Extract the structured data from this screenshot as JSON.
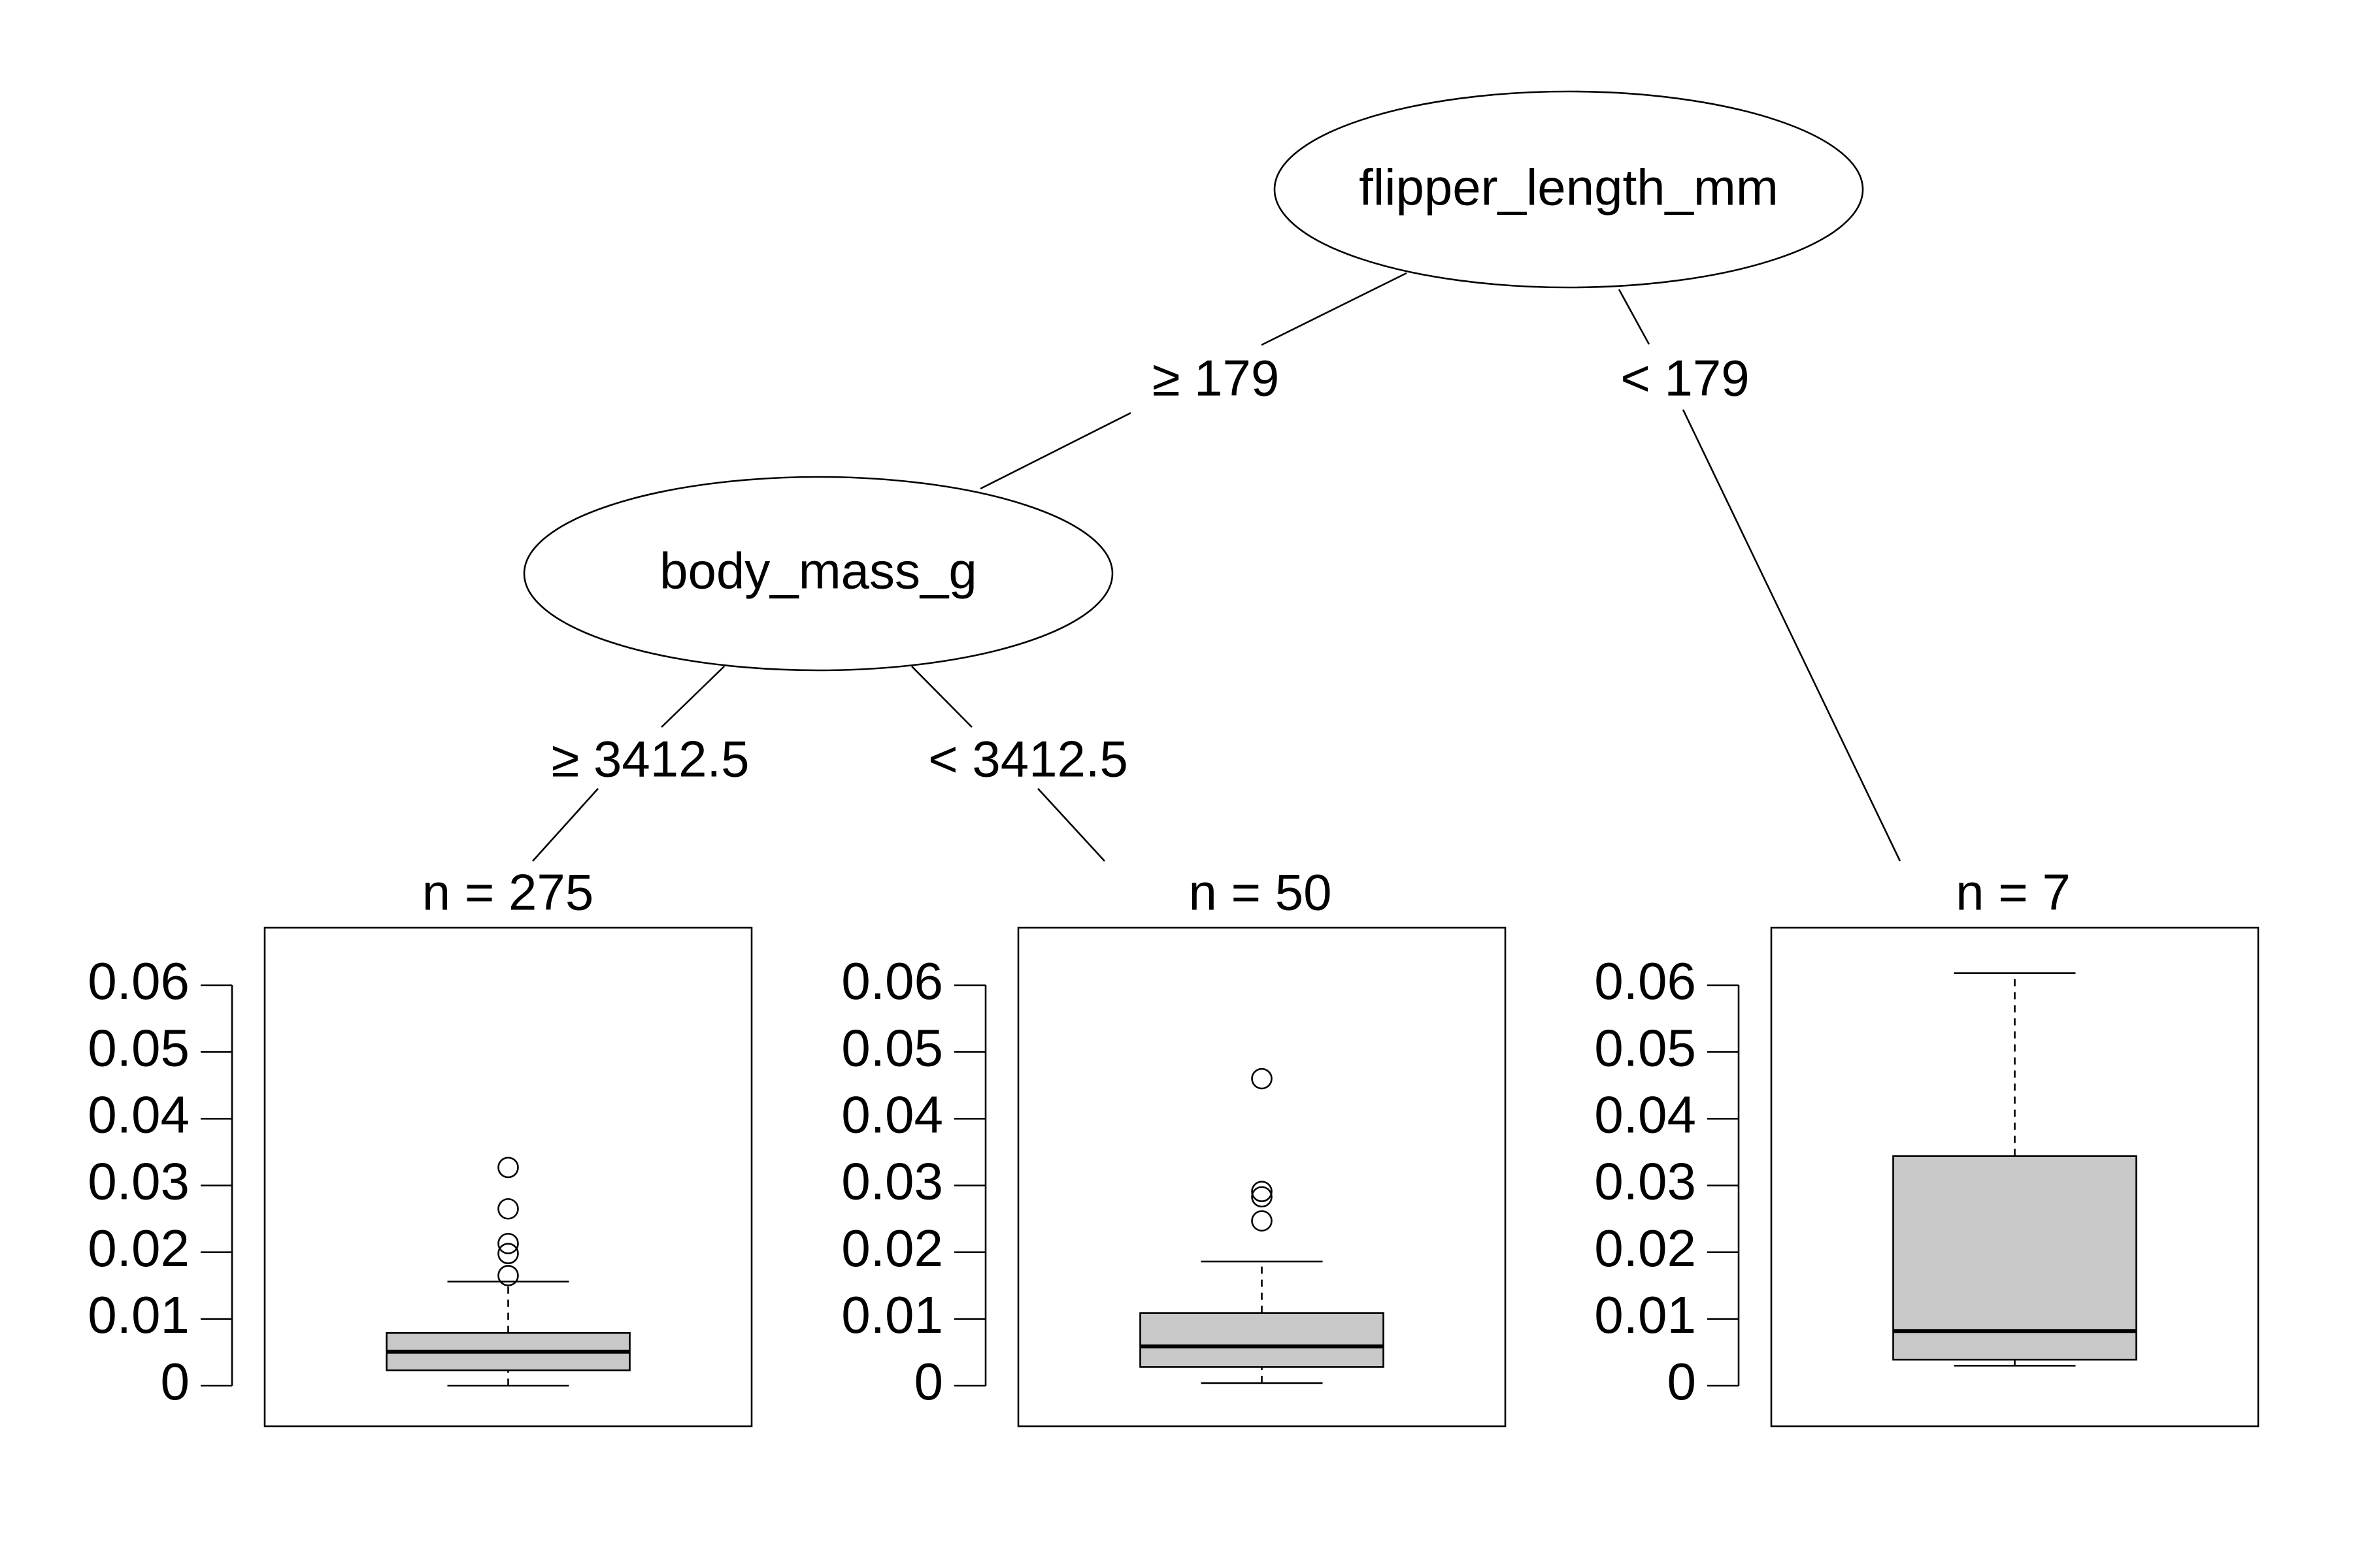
{
  "tree": {
    "nodes": [
      {
        "id": "root",
        "label": "flipper_length_mm"
      },
      {
        "id": "inner",
        "label": "body_mass_g"
      }
    ],
    "edges": [
      {
        "id": "e1",
        "from": "root",
        "to": "inner",
        "label": "≥ 179"
      },
      {
        "id": "e2",
        "from": "root",
        "to": "leaf3",
        "label": "< 179"
      },
      {
        "id": "e3",
        "from": "inner",
        "to": "leaf1",
        "label": "≥ 3412.5"
      },
      {
        "id": "e4",
        "from": "inner",
        "to": "leaf2",
        "label": "< 3412.5"
      }
    ]
  },
  "chart_data": [
    {
      "type": "boxplot",
      "id": "leaf1",
      "title": "n = 275",
      "ylim": [
        0,
        0.066
      ],
      "yticks": [
        "0",
        "0.01",
        "0.02",
        "0.03",
        "0.04",
        "0.05",
        "0.06"
      ],
      "yticks_values": [
        0,
        0.01,
        0.02,
        0.03,
        0.04,
        0.05,
        0.06
      ],
      "box": {
        "min": 0.0,
        "q1": 0.0023,
        "median": 0.0051,
        "q3": 0.0079,
        "max": 0.0156
      },
      "outliers": [
        0.0165,
        0.0198,
        0.0213,
        0.0265,
        0.0327
      ],
      "box_color": "#c8c8c8"
    },
    {
      "type": "boxplot",
      "id": "leaf2",
      "title": "n = 50",
      "ylim": [
        0,
        0.066
      ],
      "yticks": [
        "0",
        "0.01",
        "0.02",
        "0.03",
        "0.04",
        "0.05",
        "0.06"
      ],
      "yticks_values": [
        0,
        0.01,
        0.02,
        0.03,
        0.04,
        0.05,
        0.06
      ],
      "box": {
        "min": 0.0004,
        "q1": 0.0028,
        "median": 0.0059,
        "q3": 0.0109,
        "max": 0.0186
      },
      "outliers": [
        0.0247,
        0.0283,
        0.0291,
        0.046
      ],
      "box_color": "#c8c8c8"
    },
    {
      "type": "boxplot",
      "id": "leaf3",
      "title": "n = 7",
      "ylim": [
        0,
        0.066
      ],
      "yticks": [
        "0",
        "0.01",
        "0.02",
        "0.03",
        "0.04",
        "0.05",
        "0.06"
      ],
      "yticks_values": [
        0,
        0.01,
        0.02,
        0.03,
        0.04,
        0.05,
        0.06
      ],
      "box": {
        "min": 0.003,
        "q1": 0.0039,
        "median": 0.0082,
        "q3": 0.0344,
        "max": 0.0618
      },
      "outliers": [],
      "box_color": "#c8c8c8"
    }
  ]
}
